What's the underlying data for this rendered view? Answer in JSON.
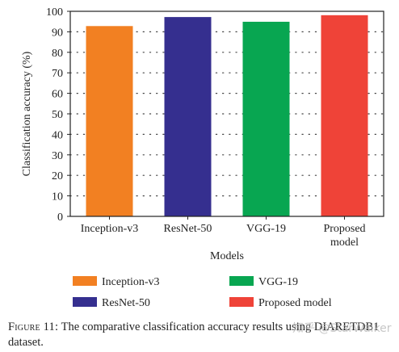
{
  "chart_data": {
    "type": "bar",
    "categories": [
      "Inception-v3",
      "ResNet-50",
      "VGG-19",
      "Proposed model"
    ],
    "category_tick_lines": [
      [
        "Inception-v3"
      ],
      [
        "ResNet-50"
      ],
      [
        "VGG-19"
      ],
      [
        "Proposed",
        "model"
      ]
    ],
    "values": [
      92.8,
      97.2,
      94.9,
      98.1
    ],
    "colors": [
      "#f28022",
      "#352f8f",
      "#08a651",
      "#ef4338"
    ],
    "title": "",
    "xlabel": "Models",
    "ylabel": "Classification accuracy (%)",
    "ylim": [
      0,
      100
    ],
    "yticks": [
      0,
      10,
      20,
      30,
      40,
      50,
      60,
      70,
      80,
      90,
      100
    ],
    "grid": "dotted horizontal",
    "legend": {
      "placement": "below",
      "entries": [
        "Inception-v3",
        "ResNet-50",
        "VGG-19",
        "Proposed model"
      ]
    }
  },
  "caption": {
    "figure_label": "Figure 11:",
    "text": "The comparative classification accuracy results using DIARETDB1 dataset."
  },
  "watermark": "知乎 @StarWalker"
}
